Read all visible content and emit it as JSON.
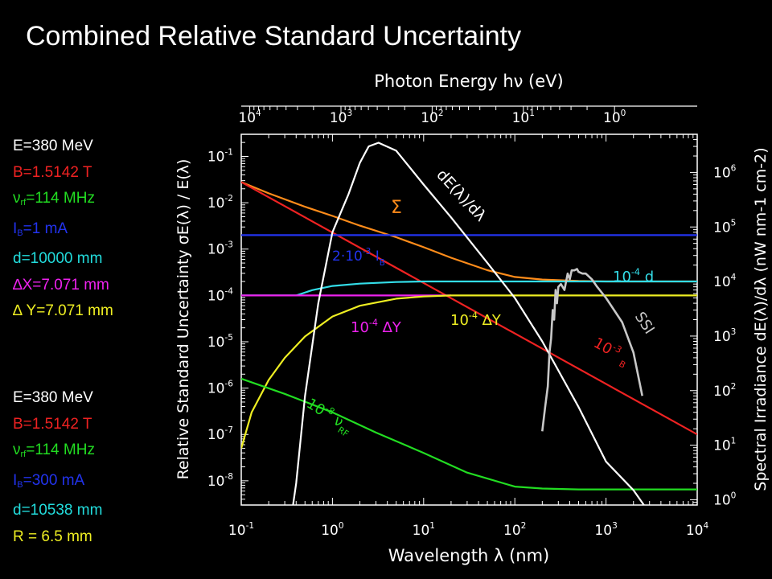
{
  "slide_title": "Combined Relative Standard Uncertainty",
  "parameter_panels": [
    {
      "lines": [
        {
          "color": "#ffffff",
          "sym": "",
          "main": "E=380 MeV",
          "sub": "",
          "rest": ""
        },
        {
          "color": "#ee2222",
          "sym": "",
          "main": "B=1.5142 T",
          "sub": "",
          "rest": ""
        },
        {
          "color": "#22dd22",
          "sym": "ν",
          "main": "",
          "sub": "rf",
          "rest": "=114 MHz"
        },
        {
          "color": "#2233ee",
          "sym": "",
          "main": "I",
          "sub": "B",
          "rest": "=1 mA"
        },
        {
          "color": "#22dddd",
          "sym": "",
          "main": "d=10000 mm",
          "sub": "",
          "rest": ""
        },
        {
          "color": "#ee22ee",
          "sym": "∆",
          "main": "X=7.071 mm",
          "sub": "",
          "rest": ""
        },
        {
          "color": "#eeee22",
          "sym": "∆",
          "main": " Y=7.071 mm",
          "sub": "",
          "rest": ""
        }
      ]
    },
    {
      "lines": [
        {
          "color": "#ffffff",
          "sym": "",
          "main": "E=380 MeV",
          "sub": "",
          "rest": ""
        },
        {
          "color": "#ee2222",
          "sym": "",
          "main": "B=1.5142 T",
          "sub": "",
          "rest": ""
        },
        {
          "color": "#22dd22",
          "sym": "ν",
          "main": "",
          "sub": "rf",
          "rest": "=114 MHz"
        },
        {
          "color": "#2233ee",
          "sym": "",
          "main": "I",
          "sub": "B",
          "rest": "=300 mA"
        },
        {
          "color": "#22dddd",
          "sym": "",
          "main": "d=10538 mm",
          "sub": "",
          "rest": ""
        },
        {
          "color": "#eeee22",
          "sym": "",
          "main": "R = 6.5 mm",
          "sub": "",
          "rest": ""
        }
      ]
    }
  ],
  "chart_data": {
    "type": "line",
    "xlabel_bottom": "Wavelength λ (nm)",
    "xlabel_top": "Photon Energy hν (eV)",
    "ylabel_left": "Relative Standard Uncertainty σE(λ) / E(λ)",
    "ylabel_right": "Spectral Irradiance dE(λ)/dλ (nW nm-1 cm-2)",
    "x_scale": "log",
    "xlim": [
      0.1,
      10000
    ],
    "ylim_left": [
      3e-09,
      0.3
    ],
    "ylim_right": [
      0.8,
      5000000
    ],
    "x_ticks": [
      "10-1",
      "100",
      "101",
      "102",
      "103",
      "104"
    ],
    "y_ticks_left": [
      "10-1",
      "10-2",
      "10-3",
      "10-4",
      "10-5",
      "10-6",
      "10-7",
      "10-8"
    ],
    "y_ticks_right": [
      "106",
      "105",
      "104",
      "103",
      "102",
      "101",
      "100"
    ],
    "top_ticks": [
      "104",
      "103",
      "102",
      "101",
      "100"
    ],
    "grid": false,
    "series": [
      {
        "color": "#ff8c1a",
        "axis": "left",
        "x": [
          0.1,
          0.2,
          0.5,
          1,
          2,
          5,
          10,
          20,
          50,
          100,
          200,
          500,
          1000,
          10000
        ],
        "y": [
          0.028,
          0.016,
          0.0082,
          0.0052,
          0.0032,
          0.0018,
          0.0011,
          0.00065,
          0.00035,
          0.00025,
          0.00022,
          0.000205,
          0.0002,
          0.0002
        ]
      },
      {
        "color": "#ee2222",
        "axis": "left",
        "x": [
          0.1,
          10000
        ],
        "y": [
          0.028,
          1e-07
        ]
      },
      {
        "color": "#2233ee",
        "axis": "left",
        "x": [
          0.1,
          10000
        ],
        "y": [
          0.002,
          0.002
        ]
      },
      {
        "color": "#33dde8",
        "axis": "left",
        "x": [
          0.1,
          0.4,
          0.6,
          1,
          2,
          5,
          10,
          10000
        ],
        "y": [
          0.0001,
          0.0001,
          0.00013,
          0.00016,
          0.00018,
          0.000195,
          0.0002,
          0.0002
        ]
      },
      {
        "color": "#ee22ee",
        "axis": "left",
        "x": [
          0.1,
          20
        ],
        "y": [
          0.0001,
          0.0001
        ]
      },
      {
        "color": "#eeee22",
        "axis": "left",
        "x": [
          0.1,
          0.13,
          0.2,
          0.3,
          0.5,
          1,
          2,
          5,
          10,
          20,
          10000
        ],
        "y": [
          5e-08,
          3e-07,
          1.5e-06,
          4.5e-06,
          1.3e-05,
          3.5e-05,
          6e-05,
          8.5e-05,
          9.5e-05,
          0.0001,
          0.0001
        ]
      },
      {
        "color": "#22dd22",
        "axis": "left",
        "x": [
          0.1,
          0.3,
          1,
          3,
          10,
          30,
          100,
          200,
          500,
          1000,
          10000
        ],
        "y": [
          1.6e-06,
          7.5e-07,
          3e-07,
          1.1e-07,
          4e-08,
          1.5e-08,
          7.5e-09,
          6.8e-09,
          6.5e-09,
          6.5e-09,
          6.5e-09
        ]
      },
      {
        "color": "#ffffff",
        "axis": "right",
        "x": [
          0.37,
          0.4,
          0.5,
          0.7,
          1,
          1.5,
          2,
          2.5,
          3.2,
          5,
          10,
          20,
          50,
          100,
          200,
          500,
          1000,
          2000,
          2600
        ],
        "y": [
          0.8,
          2,
          80,
          4000,
          80000,
          400000,
          1500000,
          3000000,
          3500000,
          2500000,
          600000,
          150000,
          22000,
          5000,
          800,
          50,
          5,
          1.5,
          0.8
        ]
      },
      {
        "color": "#c8c8c8",
        "axis": "right",
        "x": [
          200,
          215,
          230,
          240,
          250,
          260,
          270,
          280,
          290,
          300,
          320,
          350,
          380,
          400,
          420,
          450,
          480,
          500,
          550,
          600,
          700,
          800,
          1000,
          1500,
          2000,
          2500
        ],
        "y": [
          18,
          50,
          120,
          500,
          900,
          3000,
          2000,
          7000,
          4000,
          8000,
          9000,
          7000,
          14000,
          11000,
          16000,
          16000,
          17000,
          15000,
          14000,
          14000,
          11000,
          8000,
          5000,
          1800,
          500,
          80
        ]
      }
    ],
    "annotations": [
      {
        "text": "Σ",
        "color": "#ff8c1a"
      },
      {
        "text": "dE(λ)/dλ",
        "color": "#ffffff"
      },
      {
        "text": "2·10-3 IB",
        "color": "#2233ee"
      },
      {
        "text": "10-4 d",
        "color": "#33dde8"
      },
      {
        "text": "10-4 ∆Y",
        "color": "#eeee22"
      },
      {
        "text": "10-4 ∆Y",
        "color": "#ee22ee"
      },
      {
        "text": "10-3 B",
        "color": "#ee2222"
      },
      {
        "text": "SSI",
        "color": "#c8c8c8"
      },
      {
        "text": "10-8 νRF",
        "color": "#22dd22"
      }
    ]
  }
}
